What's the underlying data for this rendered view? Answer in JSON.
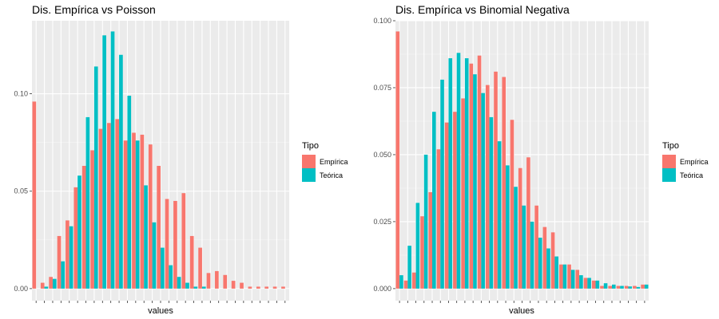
{
  "colors": {
    "panel_bg": "#EBEBEB",
    "grid_major": "#FFFFFF",
    "grid_minor": "#F5F5F5",
    "empirica": "#F8766D",
    "teorica": "#00BFC4",
    "tick": "#333333"
  },
  "chart_data": [
    {
      "type": "bar",
      "title": "Dis. Empírica vs Poisson",
      "xlabel": "values",
      "ylabel": "",
      "ylim": [
        0,
        0.1375
      ],
      "yticks": [
        0.0,
        0.05,
        0.1
      ],
      "ytick_labels": [
        "0.00",
        "0.05",
        "0.10"
      ],
      "x_tick_labels_visible": false,
      "categories": [
        0,
        1,
        2,
        3,
        4,
        5,
        6,
        7,
        8,
        9,
        10,
        11,
        12,
        13,
        14,
        15,
        16,
        17,
        18,
        19,
        20,
        21,
        22,
        23,
        24,
        25,
        26,
        27,
        28,
        29,
        30
      ],
      "series": [
        {
          "name": "Empírica",
          "values": [
            0.096,
            0.003,
            0.006,
            0.027,
            0.035,
            0.052,
            0.063,
            0.071,
            0.082,
            0.085,
            0.087,
            0.076,
            0.08,
            0.079,
            0.074,
            0.063,
            0.046,
            0.045,
            0.049,
            0.027,
            0.021,
            0.008,
            0.009,
            0.007,
            0.004,
            0.003,
            0.001,
            0.001,
            0.001,
            0.001,
            0.001
          ]
        },
        {
          "name": "Teórica",
          "values": [
            0.0,
            0.001,
            0.005,
            0.014,
            0.032,
            0.058,
            0.088,
            0.114,
            0.13,
            0.132,
            0.12,
            0.099,
            0.076,
            0.053,
            0.034,
            0.021,
            0.012,
            0.006,
            0.003,
            0.001,
            0.001,
            0.0,
            0.0,
            0.0,
            0.0,
            0.0,
            0.0,
            0.0,
            0.0,
            0.0,
            0.0
          ]
        }
      ],
      "legend": {
        "title": "Tipo",
        "position": "right",
        "entries": [
          "Empírica",
          "Teórica"
        ]
      },
      "grid": true
    },
    {
      "type": "bar",
      "title": "Dis. Empírica vs Binomial Negativa",
      "xlabel": "values",
      "ylabel": "",
      "ylim": [
        0,
        0.1
      ],
      "yticks": [
        0.0,
        0.025,
        0.05,
        0.075,
        0.1
      ],
      "ytick_labels": [
        "0.000",
        "0.025",
        "0.050",
        "0.075",
        "0.100"
      ],
      "x_tick_labels_visible": false,
      "categories": [
        0,
        1,
        2,
        3,
        4,
        5,
        6,
        7,
        8,
        9,
        10,
        11,
        12,
        13,
        14,
        15,
        16,
        17,
        18,
        19,
        20,
        21,
        22,
        23,
        24,
        25,
        26,
        27,
        28,
        29,
        30
      ],
      "series": [
        {
          "name": "Empírica",
          "values": [
            0.096,
            0.003,
            0.006,
            0.027,
            0.036,
            0.052,
            0.062,
            0.066,
            0.071,
            0.084,
            0.087,
            0.076,
            0.081,
            0.079,
            0.063,
            0.045,
            0.049,
            0.031,
            0.023,
            0.021,
            0.009,
            0.009,
            0.007,
            0.004,
            0.003,
            0.001,
            0.001,
            0.001,
            0.001,
            0.001,
            0.0015
          ]
        },
        {
          "name": "Teórica",
          "values": [
            0.005,
            0.016,
            0.032,
            0.05,
            0.066,
            0.078,
            0.086,
            0.088,
            0.086,
            0.08,
            0.073,
            0.064,
            0.055,
            0.046,
            0.038,
            0.031,
            0.025,
            0.019,
            0.015,
            0.012,
            0.009,
            0.007,
            0.005,
            0.004,
            0.003,
            0.002,
            0.0015,
            0.001,
            0.0008,
            0.0006,
            0.0015
          ]
        }
      ],
      "legend": {
        "title": "Tipo",
        "position": "right",
        "entries": [
          "Empírica",
          "Teórica"
        ]
      },
      "grid": true
    }
  ]
}
